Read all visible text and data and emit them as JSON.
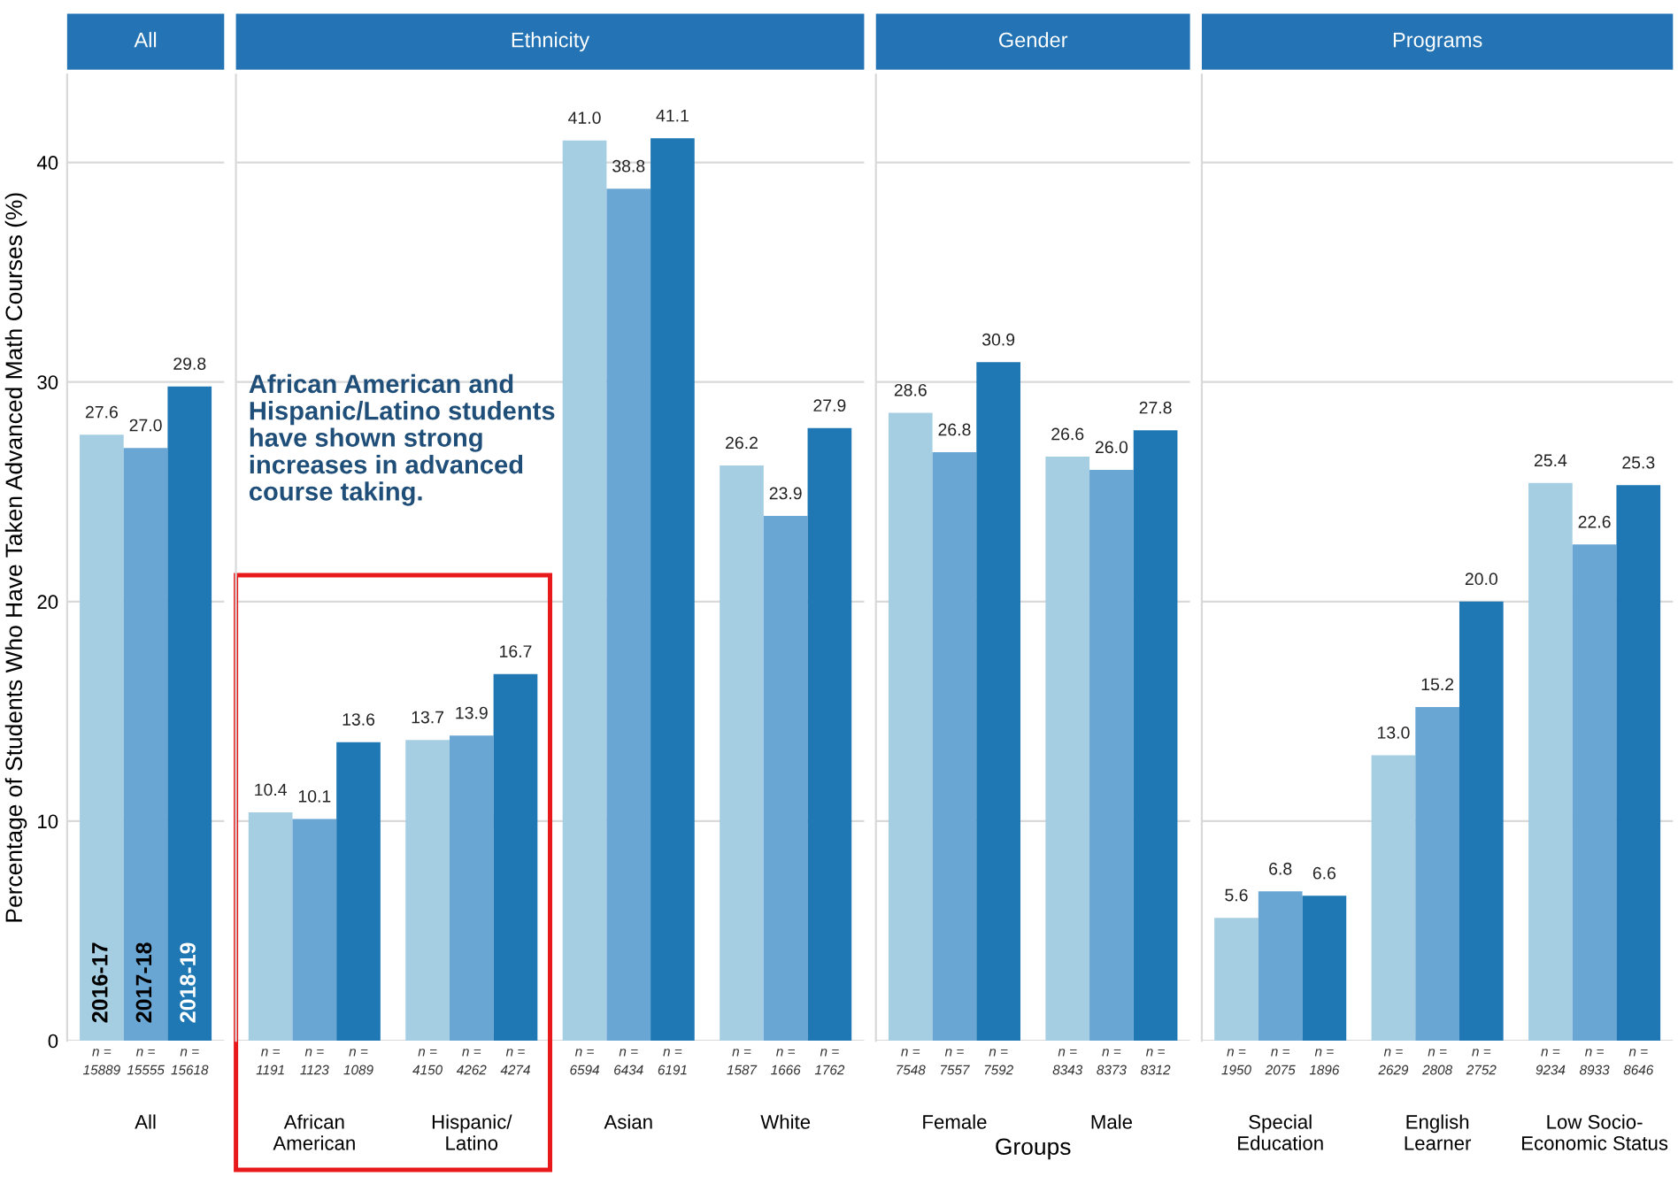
{
  "chart_data": [
    {
      "type": "bar",
      "title": "All",
      "ylabel": "Percentage of Students Who Have Taken Advanced Math Courses (%)",
      "categories": [
        "All"
      ],
      "series": [
        {
          "name": "2016-17",
          "color": "#a6cee3",
          "values": [
            27.6
          ],
          "value_labels": [
            "27.6"
          ]
        },
        {
          "name": "2017-18",
          "color": "#6aa6d4",
          "values": [
            27.0
          ],
          "value_labels": [
            "27.0"
          ]
        },
        {
          "name": "2018-19",
          "color": "#1f78b4",
          "values": [
            29.8
          ],
          "value_labels": [
            "29.8"
          ]
        }
      ],
      "ylim": [
        0,
        44
      ],
      "yticks": [
        0,
        10,
        20,
        30,
        40
      ],
      "grid": "y",
      "annotations": [
        "n =\n15889",
        "n =\n15555",
        "n =\n15618"
      ]
    },
    {
      "type": "bar",
      "title": "Ethnicity",
      "categories": [
        "African\nAmerican",
        "Hispanic/\nLatino",
        "Asian",
        "White"
      ],
      "series": [
        {
          "color": "#a6cee3",
          "values": [
            10.4,
            13.7,
            41.0,
            26.2
          ],
          "value_labels": [
            "10.4",
            "13.7",
            "41.0",
            "26.2"
          ]
        },
        {
          "color": "#6aa6d4",
          "values": [
            10.1,
            13.9,
            38.8,
            23.9
          ],
          "value_labels": [
            "10.1",
            "13.9",
            "38.8",
            "23.9"
          ]
        },
        {
          "color": "#1f78b4",
          "values": [
            13.6,
            16.7,
            41.1,
            27.9
          ],
          "value_labels": [
            "13.6",
            "16.7",
            "41.1",
            "27.9"
          ]
        }
      ],
      "ylim": [
        0,
        44
      ],
      "yticks": [
        0,
        10,
        20,
        30,
        40
      ],
      "grid": "y",
      "tick_labels": "x",
      "annotations": [
        "African American and\nHispanic/Latino students\nhave shown strong\nincreases in advanced\ncourse taking.",
        "n =\n1191",
        "n =\n1123",
        "n =\n1089",
        "n =\n4150",
        "n =\n4262",
        "n =\n4274",
        "n =\n6594",
        "n =\n6434",
        "n =\n6191",
        "n =\n1587",
        "n =\n1666",
        "n =\n1762"
      ]
    },
    {
      "type": "bar",
      "title": "Gender",
      "xlabel": "Groups",
      "categories": [
        "Female",
        "Male"
      ],
      "series": [
        {
          "color": "#a6cee3",
          "values": [
            28.6,
            26.6
          ],
          "value_labels": [
            "28.6",
            "26.6"
          ]
        },
        {
          "color": "#6aa6d4",
          "values": [
            26.8,
            26.0
          ],
          "value_labels": [
            "26.8",
            "26.0"
          ]
        },
        {
          "color": "#1f78b4",
          "values": [
            30.9,
            27.8
          ],
          "value_labels": [
            "30.9",
            "27.8"
          ]
        }
      ],
      "ylim": [
        0,
        44
      ],
      "yticks": [
        0,
        10,
        20,
        30,
        40
      ],
      "grid": "y",
      "tick_labels": "x",
      "annotations": [
        "n =\n7548",
        "n =\n7557",
        "n =\n7592",
        "n =\n8343",
        "n =\n8373",
        "n =\n8312"
      ]
    },
    {
      "type": "bar",
      "title": "Programs",
      "categories": [
        "Special\nEducation",
        "English\nLearner",
        "Low Socio-\nEconomic Status"
      ],
      "series": [
        {
          "color": "#a6cee3",
          "values": [
            5.6,
            13.0,
            25.4
          ],
          "value_labels": [
            "5.6",
            "13.0",
            "25.4"
          ]
        },
        {
          "color": "#6aa6d4",
          "values": [
            6.8,
            15.2,
            22.6
          ],
          "value_labels": [
            "6.8",
            "15.2",
            "22.6"
          ]
        },
        {
          "color": "#1f78b4",
          "values": [
            6.6,
            20.0,
            25.3
          ],
          "value_labels": [
            "6.6",
            "20.0",
            "25.3"
          ]
        }
      ],
      "ylim": [
        0,
        44
      ],
      "yticks": [
        0,
        10,
        20,
        30,
        40
      ],
      "grid": "y",
      "tick_labels": "x",
      "annotations": [
        "n =\n1950",
        "n =\n2075",
        "n =\n1896",
        "n =\n2629",
        "n =\n2808",
        "n =\n2752",
        "n =\n9234",
        "n =\n8933",
        "n =\n8646"
      ]
    }
  ]
}
